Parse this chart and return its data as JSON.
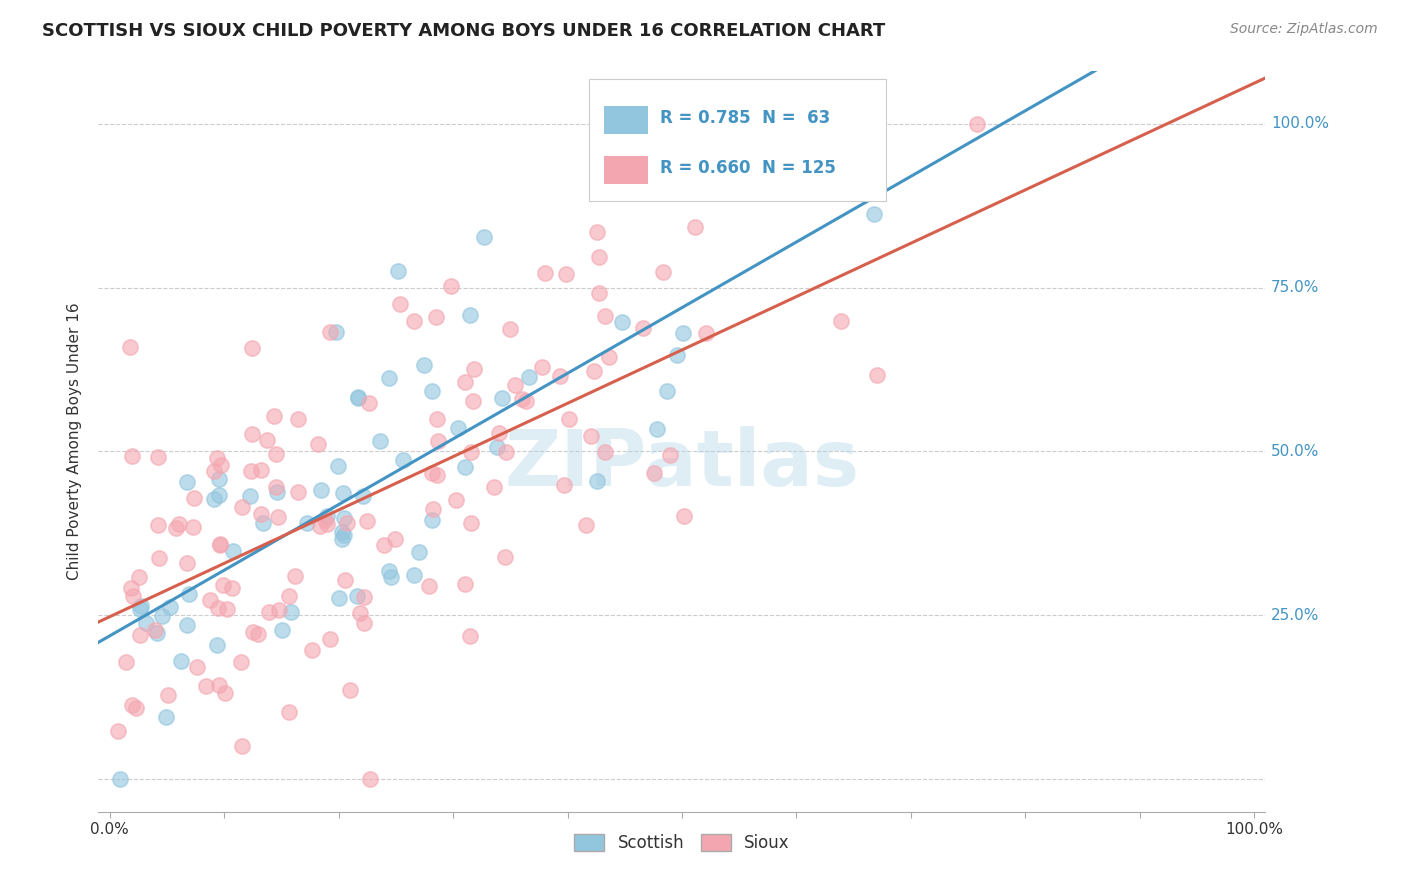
{
  "title": "SCOTTISH VS SIOUX CHILD POVERTY AMONG BOYS UNDER 16 CORRELATION CHART",
  "source_text": "Source: ZipAtlas.com",
  "ylabel": "Child Poverty Among Boys Under 16",
  "watermark": "ZIPatlas",
  "scottish_R": 0.785,
  "scottish_N": 63,
  "sioux_R": 0.66,
  "sioux_N": 125,
  "scottish_color": "#92c5de",
  "sioux_color": "#f4a6b0",
  "scottish_line_color": "#4393c3",
  "sioux_line_color": "#d6604d",
  "background_color": "#ffffff",
  "grid_color": "#cccccc",
  "legend_text_color": "#4393c3",
  "right_tick_color": "#4393c3"
}
